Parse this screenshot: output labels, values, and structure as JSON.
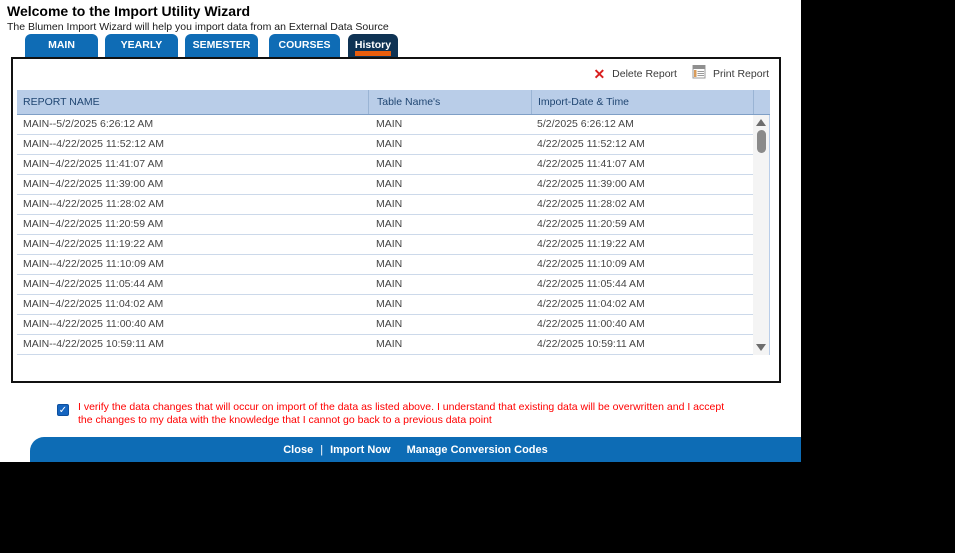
{
  "window": {
    "title": "Welcome to the Import Utility Wizard",
    "subtitle": "The Blumen Import Wizard will help you import data from an External Data Source"
  },
  "tabs": [
    {
      "label": "MAIN",
      "active": false
    },
    {
      "label": "YEARLY",
      "active": false
    },
    {
      "label": "SEMESTER",
      "active": false
    },
    {
      "label": "COURSES",
      "active": false
    },
    {
      "label": "History",
      "active": true
    }
  ],
  "toolbar": {
    "delete_label": "Delete Report",
    "print_label": "Print Report",
    "delete_icon": "x-icon",
    "print_icon": "report-icon"
  },
  "table": {
    "columns": [
      "REPORT NAME",
      "Table Name's",
      "Import-Date & Time"
    ],
    "rows": [
      {
        "report_name": "MAIN--5/2/2025 6:26:12 AM",
        "table_name": "MAIN",
        "import_datetime": "5/2/2025 6:26:12 AM"
      },
      {
        "report_name": "MAIN--4/22/2025 11:52:12 AM",
        "table_name": "MAIN",
        "import_datetime": "4/22/2025 11:52:12 AM"
      },
      {
        "report_name": "MAIN~4/22/2025 11:41:07 AM",
        "table_name": "MAIN",
        "import_datetime": "4/22/2025 11:41:07 AM"
      },
      {
        "report_name": "MAIN~4/22/2025 11:39:00 AM",
        "table_name": "MAIN",
        "import_datetime": "4/22/2025 11:39:00 AM"
      },
      {
        "report_name": "MAIN--4/22/2025 11:28:02 AM",
        "table_name": "MAIN",
        "import_datetime": "4/22/2025 11:28:02 AM"
      },
      {
        "report_name": "MAIN~4/22/2025 11:20:59 AM",
        "table_name": "MAIN",
        "import_datetime": "4/22/2025 11:20:59 AM"
      },
      {
        "report_name": "MAIN~4/22/2025 11:19:22 AM",
        "table_name": "MAIN",
        "import_datetime": "4/22/2025 11:19:22 AM"
      },
      {
        "report_name": "MAIN--4/22/2025 11:10:09 AM",
        "table_name": "MAIN",
        "import_datetime": "4/22/2025 11:10:09 AM"
      },
      {
        "report_name": "MAIN~4/22/2025 11:05:44 AM",
        "table_name": "MAIN",
        "import_datetime": "4/22/2025 11:05:44 AM"
      },
      {
        "report_name": "MAIN~4/22/2025 11:04:02 AM",
        "table_name": "MAIN",
        "import_datetime": "4/22/2025 11:04:02 AM"
      },
      {
        "report_name": "MAIN--4/22/2025 11:00:40 AM",
        "table_name": "MAIN",
        "import_datetime": "4/22/2025 11:00:40 AM"
      },
      {
        "report_name": "MAIN--4/22/2025 10:59:11 AM",
        "table_name": "MAIN",
        "import_datetime": "4/22/2025 10:59:11 AM"
      }
    ]
  },
  "confirmation": {
    "checked": true,
    "checkmark": "✓",
    "text": "I verify the data changes that will occur on import of the data as listed above. I understand that existing data will be overwritten and I accept the changes to my data with the knowledge that I cannot go back to a previous data point"
  },
  "footer": {
    "close_label": "Close",
    "separator": "|",
    "import_now_label": "Import Now",
    "manage_label": "Manage Conversion Codes"
  },
  "colors": {
    "tab_blue": "#0f6cb5",
    "tab_active_navy": "#0f3354",
    "tab_indicator_orange": "#e95d0c",
    "table_header_bg": "#b9cde8",
    "table_header_text": "#1f4571",
    "confirm_text_red": "#ff0000",
    "footer_bar_blue": "#0d6cb5",
    "delete_x_red": "#d91f1f"
  }
}
